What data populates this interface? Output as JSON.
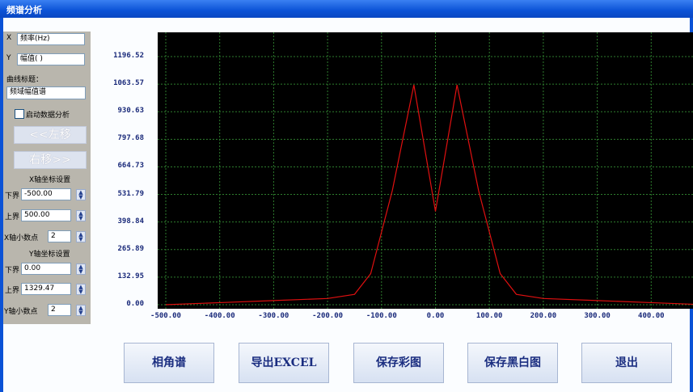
{
  "window": {
    "title": "频谱分析"
  },
  "panel": {
    "x_prefix": "X",
    "x_label": "频率(Hz)",
    "y_prefix": "Y",
    "y_label": "幅值( )",
    "curve_title_label": "曲线标题：",
    "curve_title_value": "频域幅值谱",
    "enable_analysis_label": "启动数据分析",
    "shift_left": "<<左移",
    "shift_right": "右移>>",
    "x_section": "X轴坐标设置",
    "x_lower_label": "下界",
    "x_lower_value": "-500.00",
    "x_upper_label": "上界",
    "x_upper_value": "500.00",
    "x_decimal_label": "X轴小数点",
    "x_decimal_value": "2",
    "y_section": "Y轴坐标设置",
    "y_lower_label": "下界",
    "y_lower_value": "0.00",
    "y_upper_label": "上界",
    "y_upper_value": "1329.47",
    "y_decimal_label": "Y轴小数点",
    "y_decimal_value": "2"
  },
  "buttons": {
    "phase": "相角谱",
    "export": "导出EXCEL",
    "save_color": "保存彩图",
    "save_bw": "保存黑白图",
    "exit": "退出"
  },
  "colors": {
    "plot_bg": "#000000",
    "grid": "#2e7d2e",
    "curve": "#e01010",
    "titlebar": "#0b52d6"
  },
  "chart_data": {
    "type": "line",
    "xlim": [
      -500,
      500
    ],
    "ylim": [
      0,
      1329.47
    ],
    "grid": true,
    "x_ticks": [
      "-500.00",
      "-400.00",
      "-300.00",
      "-200.00",
      "-100.00",
      "0.00",
      "100.00",
      "200.00",
      "300.00",
      "400.00"
    ],
    "y_ticks": [
      "0.00",
      "132.95",
      "265.89",
      "398.84",
      "531.79",
      "664.73",
      "797.68",
      "930.63",
      "1063.57",
      "1196.52"
    ],
    "series": [
      {
        "x": [
          -500,
          -400,
          -300,
          -200,
          -150,
          -120,
          -80,
          -40,
          0,
          40,
          80,
          120,
          150,
          200,
          300,
          400,
          500
        ],
        "values": [
          0,
          10,
          20,
          30,
          50,
          150,
          550,
          1060,
          450,
          1060,
          550,
          150,
          50,
          30,
          20,
          10,
          0
        ]
      }
    ]
  }
}
